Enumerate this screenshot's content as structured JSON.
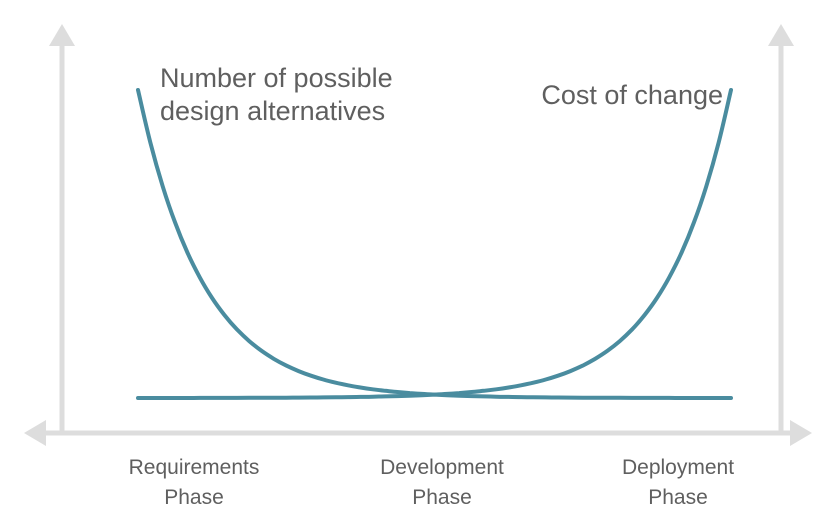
{
  "colors": {
    "curve": "#4a8c9f",
    "axis": "#dddddd",
    "text": "#5f5f5f"
  },
  "chart_data": {
    "type": "line",
    "title": "",
    "xlabel": "",
    "ylabel": "",
    "grid": false,
    "categories": [
      "Requirements Phase",
      "Development Phase",
      "Deployment Phase"
    ],
    "tick_labels": [
      {
        "line1": "Requirements",
        "line2": "Phase"
      },
      {
        "line1": "Development",
        "line2": "Phase"
      },
      {
        "line1": "Deployment",
        "line2": "Phase"
      }
    ],
    "series": [
      {
        "name": "Number of possible design alternatives",
        "label_lines": [
          "Number of possible",
          "design alternatives"
        ],
        "x": [
          0,
          0.25,
          0.5,
          0.75,
          1
        ],
        "values": [
          1.0,
          0.28,
          0.04,
          0.005,
          0.0
        ]
      },
      {
        "name": "Cost of change",
        "label_lines": [
          "Cost of change"
        ],
        "x": [
          0,
          0.25,
          0.5,
          0.75,
          1
        ],
        "values": [
          0.0,
          0.005,
          0.04,
          0.28,
          1.0
        ]
      }
    ]
  }
}
